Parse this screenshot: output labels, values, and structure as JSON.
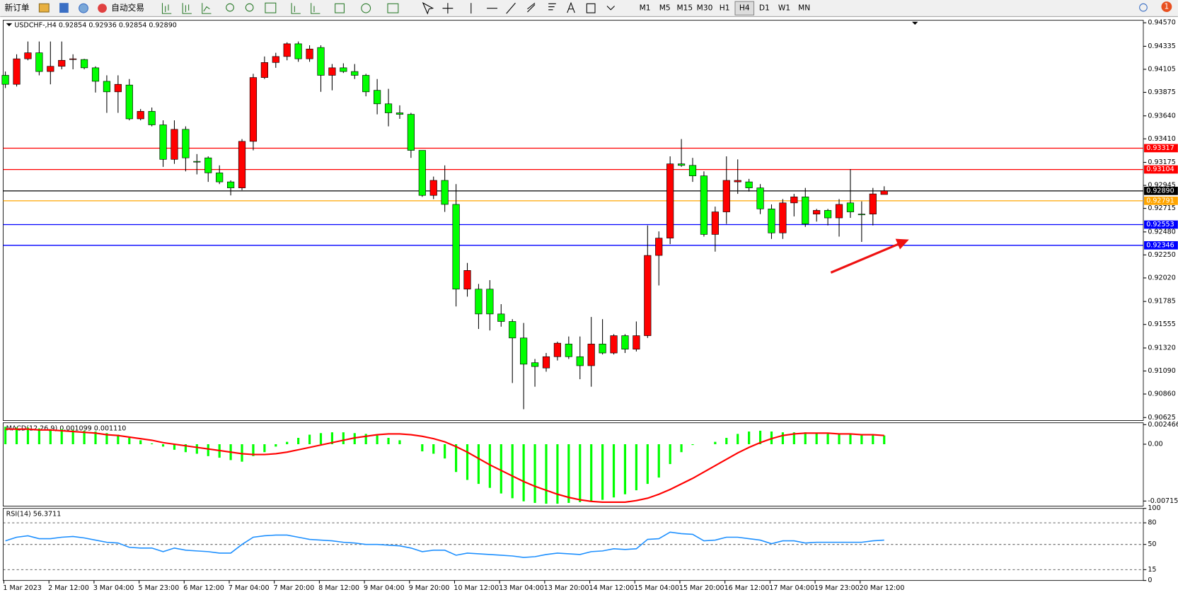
{
  "toolbar": {
    "new_order": "新订单",
    "auto_trading": "自动交易",
    "timeframes": [
      "M1",
      "M5",
      "M15",
      "M30",
      "H1",
      "H4",
      "D1",
      "W1",
      "MN"
    ],
    "active_timeframe": 5,
    "notification": "1"
  },
  "chart_data": [
    {
      "type": "candlestick",
      "title": "USDCHF-,H4  0.92854 0.92936 0.92854 0.92890",
      "up_color": "#ff0000",
      "down_color": "#00ff00",
      "categories": [
        "1 Mar 2023",
        null,
        null,
        null,
        "2 Mar 12:00",
        null,
        null,
        null,
        "3 Mar 04:00",
        null,
        null,
        null,
        "5 Mar 23:00",
        null,
        null,
        null,
        "6 Mar 12:00",
        null,
        null,
        null,
        "7 Mar 04:00",
        null,
        null,
        null,
        "7 Mar 20:00",
        null,
        null,
        null,
        "8 Mar 12:00",
        null,
        null,
        null,
        "9 Mar 04:00",
        null,
        null,
        null,
        "9 Mar 20:00",
        null,
        null,
        null,
        "10 Mar 12:00",
        null,
        null,
        null,
        "13 Mar 04:00",
        null,
        null,
        null,
        "13 Mar 20:00",
        null,
        null,
        null,
        "14 Mar 12:00",
        null,
        null,
        null,
        "15 Mar 04:00",
        null,
        null,
        null,
        "15 Mar 20:00",
        null,
        null,
        null,
        "16 Mar 12:00",
        null,
        null,
        null,
        "17 Mar 04:00",
        null,
        null,
        null,
        "19 Mar 23:00",
        null,
        null,
        null,
        "20 Mar 12:00",
        null,
        null
      ],
      "ohlc": [
        [
          0.94045,
          0.94083,
          0.93918,
          0.93955
        ],
        [
          0.93955,
          0.94255,
          0.93933,
          0.9421
        ],
        [
          0.9421,
          0.94383,
          0.94195,
          0.9427
        ],
        [
          0.9427,
          0.94383,
          0.94045,
          0.94083
        ],
        [
          0.94083,
          0.94383,
          0.93955,
          0.94135
        ],
        [
          0.94135,
          0.94383,
          0.94105,
          0.94195
        ],
        [
          0.94203,
          0.94255,
          0.94105,
          0.9421
        ],
        [
          0.94203,
          0.9421,
          0.94105,
          0.9412
        ],
        [
          0.9412,
          0.94135,
          0.93873,
          0.93985
        ],
        [
          0.93985,
          0.94045,
          0.9367,
          0.9388
        ],
        [
          0.9388,
          0.94045,
          0.9367,
          0.93955
        ],
        [
          0.93948,
          0.94008,
          0.93595,
          0.9361
        ],
        [
          0.9361,
          0.93708,
          0.93595,
          0.93685
        ],
        [
          0.93685,
          0.93723,
          0.93535,
          0.9355
        ],
        [
          0.9355,
          0.93595,
          0.9313,
          0.93205
        ],
        [
          0.93205,
          0.93595,
          0.9316,
          0.93505
        ],
        [
          0.93505,
          0.93535,
          0.93085,
          0.9322
        ],
        [
          0.93185,
          0.93258,
          0.93055,
          0.9318
        ],
        [
          0.9322,
          0.93235,
          0.9298,
          0.9307
        ],
        [
          0.9307,
          0.93145,
          0.92958,
          0.9298
        ],
        [
          0.9298,
          0.92995,
          0.92845,
          0.9292
        ],
        [
          0.9292,
          0.93408,
          0.92898,
          0.93385
        ],
        [
          0.93385,
          0.9406,
          0.93295,
          0.94023
        ],
        [
          0.94023,
          0.94233,
          0.94008,
          0.94173
        ],
        [
          0.94173,
          0.9427,
          0.9412,
          0.94233
        ],
        [
          0.94233,
          0.94375,
          0.94195,
          0.9436
        ],
        [
          0.9436,
          0.94383,
          0.9418,
          0.9421
        ],
        [
          0.9421,
          0.94345,
          0.9418,
          0.94308
        ],
        [
          0.94323,
          0.94345,
          0.9388,
          0.94045
        ],
        [
          0.94045,
          0.94158,
          0.93895,
          0.9412
        ],
        [
          0.9412,
          0.94165,
          0.94068,
          0.94083
        ],
        [
          0.94083,
          0.94158,
          0.94008,
          0.94045
        ],
        [
          0.94045,
          0.9406,
          0.93835,
          0.9388
        ],
        [
          0.93895,
          0.94008,
          0.93655,
          0.9376
        ],
        [
          0.9376,
          0.9391,
          0.93535,
          0.9367
        ],
        [
          0.9367,
          0.93745,
          0.9361,
          0.93655
        ],
        [
          0.93655,
          0.9367,
          0.9322,
          0.93295
        ],
        [
          0.93295,
          0.93295,
          0.9283,
          0.92845
        ],
        [
          0.92845,
          0.93033,
          0.92808,
          0.92995
        ],
        [
          0.92995,
          0.93145,
          0.9268,
          0.92755
        ],
        [
          0.92755,
          0.92958,
          0.91735,
          0.91908
        ],
        [
          0.91908,
          0.9217,
          0.91833,
          0.92095
        ],
        [
          0.91908,
          0.9196,
          0.9151,
          0.9166
        ],
        [
          0.91908,
          0.91998,
          0.91495,
          0.9166
        ],
        [
          0.9166,
          0.91758,
          0.91533,
          0.91585
        ],
        [
          0.91585,
          0.91608,
          0.9097,
          0.9142
        ],
        [
          0.9142,
          0.9157,
          0.90708,
          0.91158
        ],
        [
          0.91173,
          0.9121,
          0.90933,
          0.91135
        ],
        [
          0.9112,
          0.9127,
          0.91083,
          0.91233
        ],
        [
          0.91233,
          0.91383,
          0.91195,
          0.91368
        ],
        [
          0.9136,
          0.91435,
          0.9121,
          0.91233
        ],
        [
          0.91233,
          0.91435,
          0.91008,
          0.91143
        ],
        [
          0.91143,
          0.9163,
          0.90933,
          0.9136
        ],
        [
          0.9136,
          0.91608,
          0.91255,
          0.9127
        ],
        [
          0.9127,
          0.91458,
          0.91255,
          0.91443
        ],
        [
          0.91443,
          0.91458,
          0.9127,
          0.91308
        ],
        [
          0.91308,
          0.91585,
          0.91285,
          0.91443
        ],
        [
          0.91443,
          0.92545,
          0.9142,
          0.92245
        ],
        [
          0.92245,
          0.92485,
          0.91945,
          0.92418
        ],
        [
          0.92418,
          0.93235,
          0.92358,
          0.9316
        ],
        [
          0.9316,
          0.93408,
          0.9313,
          0.93145
        ],
        [
          0.93145,
          0.9322,
          0.9298,
          0.9304
        ],
        [
          0.9304,
          0.93085,
          0.92433,
          0.92455
        ],
        [
          0.92455,
          0.92733,
          0.92283,
          0.9268
        ],
        [
          0.9268,
          0.93235,
          0.9256,
          0.92995
        ],
        [
          0.9298,
          0.93205,
          0.9286,
          0.92995
        ],
        [
          0.9298,
          0.9301,
          0.92883,
          0.9292
        ],
        [
          0.9292,
          0.92958,
          0.92658,
          0.9271
        ],
        [
          0.9271,
          0.92755,
          0.9241,
          0.9247
        ],
        [
          0.9247,
          0.92808,
          0.9241,
          0.9277
        ],
        [
          0.9277,
          0.9286,
          0.92635,
          0.9283
        ],
        [
          0.9283,
          0.9292,
          0.9253,
          0.9256
        ],
        [
          0.92658,
          0.9271,
          0.92583,
          0.92695
        ],
        [
          0.92695,
          0.9271,
          0.92545,
          0.9262
        ],
        [
          0.9262,
          0.92808,
          0.92433,
          0.92755
        ],
        [
          0.9277,
          0.93108,
          0.9262,
          0.9268
        ],
        [
          0.92658,
          0.92785,
          0.9238,
          0.92655
        ],
        [
          0.92658,
          0.9292,
          0.92545,
          0.9286
        ],
        [
          0.92854,
          0.92936,
          0.92854,
          0.9289
        ]
      ],
      "ylim": [
        0.90595,
        0.94595
      ],
      "yticks": [
        {
          "value": 0.9457,
          "label": "0.94570"
        },
        {
          "value": 0.94335,
          "label": "0.94335"
        },
        {
          "value": 0.94105,
          "label": "0.94105"
        },
        {
          "value": 0.93875,
          "label": "0.93875"
        },
        {
          "value": 0.9364,
          "label": "0.93640"
        },
        {
          "value": 0.9341,
          "label": "0.93410"
        },
        {
          "value": 0.93175,
          "label": "0.93175"
        },
        {
          "value": 0.92945,
          "label": "0.92945"
        },
        {
          "value": 0.92715,
          "label": "0.92715"
        },
        {
          "value": 0.9248,
          "label": "0.92480"
        },
        {
          "value": 0.9225,
          "label": "0.92250"
        },
        {
          "value": 0.9202,
          "label": "0.92020"
        },
        {
          "value": 0.91785,
          "label": "0.91785"
        },
        {
          "value": 0.91555,
          "label": "0.91555"
        },
        {
          "value": 0.9132,
          "label": "0.91320"
        },
        {
          "value": 0.9109,
          "label": "0.91090"
        },
        {
          "value": 0.9086,
          "label": "0.90860"
        },
        {
          "value": 0.90625,
          "label": "0.90625"
        }
      ],
      "hlines": [
        {
          "value": 0.93317,
          "label": "0.93317",
          "color": "#ff0000"
        },
        {
          "value": 0.93104,
          "label": "0.93104",
          "color": "#ff0000"
        },
        {
          "value": 0.9289,
          "label": "0.92890",
          "color": "#000000"
        },
        {
          "value": 0.92791,
          "label": "0.92791",
          "color": "#ffa500"
        },
        {
          "value": 0.92553,
          "label": "0.92553",
          "color": "#0000ff"
        },
        {
          "value": 0.92346,
          "label": "0.92346",
          "color": "#0000ff"
        }
      ]
    },
    {
      "type": "macd",
      "title": "MACD(12,26,9) 0.001099 0.001110",
      "series": [
        {
          "type": "bar",
          "color": "#00ff00",
          "values": [
            0.0022,
            0.0021,
            0.0021,
            0.002,
            0.0019,
            0.0019,
            0.0018,
            0.0017,
            0.0016,
            0.0014,
            0.0012,
            0.0008,
            0.0005,
            0.0001,
            -0.0003,
            -0.0007,
            -0.001,
            -0.0012,
            -0.0015,
            -0.0017,
            -0.002,
            -0.0022,
            -0.0015,
            -0.001,
            -0.0003,
            0.0003,
            0.0008,
            0.0012,
            0.0014,
            0.0015,
            0.0015,
            0.0014,
            0.0013,
            0.0011,
            0.0008,
            0.0005,
            0,
            -0.0009,
            -0.0012,
            -0.0018,
            -0.0035,
            -0.0045,
            -0.005,
            -0.0055,
            -0.0062,
            -0.0068,
            -0.0072,
            -0.0074,
            -0.0075,
            -0.0075,
            -0.0074,
            -0.0073,
            -0.0072,
            -0.007,
            -0.0067,
            -0.0063,
            -0.0058,
            -0.005,
            -0.0042,
            -0.0025,
            -0.001,
            -0.0001,
            0,
            0.0003,
            0.0008,
            0.0013,
            0.0016,
            0.0017,
            0.0016,
            0.0015,
            0.0015,
            0.0015,
            0.0014,
            0.0013,
            0.0013,
            0.0013,
            0.0012,
            0.0012,
            0.0011
          ]
        },
        {
          "type": "line",
          "color": "#ff0000",
          "values": [
            0.0019,
            0.0019,
            0.0019,
            0.0018,
            0.0018,
            0.0017,
            0.0016,
            0.0015,
            0.0014,
            0.0012,
            0.0011,
            0.0009,
            0.0007,
            0.0005,
            0.0002,
            0,
            -0.0002,
            -0.0004,
            -0.0006,
            -0.0008,
            -0.001,
            -0.0012,
            -0.0013,
            -0.0013,
            -0.0012,
            -0.001,
            -0.0007,
            -0.0004,
            -0.0001,
            0.0002,
            0.0005,
            0.0008,
            0.001,
            0.0012,
            0.0013,
            0.0013,
            0.0012,
            0.001,
            0.0007,
            0.0003,
            -0.0003,
            -0.001,
            -0.0018,
            -0.0026,
            -0.0033,
            -0.004,
            -0.0047,
            -0.0053,
            -0.0058,
            -0.0063,
            -0.0067,
            -0.007,
            -0.0072,
            -0.0073,
            -0.0073,
            -0.0073,
            -0.0071,
            -0.0068,
            -0.0063,
            -0.0057,
            -0.005,
            -0.0043,
            -0.0035,
            -0.0027,
            -0.0019,
            -0.0011,
            -0.0004,
            0.0002,
            0.0007,
            0.0011,
            0.0013,
            0.0014,
            0.0014,
            0.0014,
            0.0013,
            0.0013,
            0.0012,
            0.0012,
            0.0011
          ]
        }
      ],
      "ylim": [
        -0.0078,
        0.0027
      ],
      "yticks": [
        {
          "value": 0.002466,
          "label": "0.002466"
        },
        {
          "value": 0,
          "label": "0.00"
        },
        {
          "value": -0.007157,
          "label": "-0.007157"
        }
      ]
    },
    {
      "type": "line",
      "title": "RSI(14) 56.3711",
      "color": "#1e90ff",
      "values": [
        55,
        60,
        62,
        58,
        58,
        60,
        61,
        59,
        56,
        53,
        52,
        46,
        45,
        45,
        40,
        45,
        42,
        41,
        40,
        38,
        38,
        50,
        60,
        62,
        63,
        63,
        60,
        57,
        56,
        55,
        53,
        52,
        50,
        50,
        49,
        48,
        45,
        40,
        42,
        42,
        35,
        38,
        37,
        36,
        35,
        34,
        32,
        33,
        36,
        38,
        37,
        36,
        40,
        41,
        44,
        43,
        44,
        57,
        58,
        67,
        65,
        64,
        55,
        56,
        60,
        60,
        58,
        56,
        51,
        55,
        55,
        52,
        53,
        53,
        53,
        53,
        53,
        55,
        56
      ],
      "ylim": [
        0,
        100
      ],
      "yticks": [
        100,
        80,
        50,
        15,
        0
      ],
      "levels": [
        80,
        50,
        15
      ]
    }
  ]
}
